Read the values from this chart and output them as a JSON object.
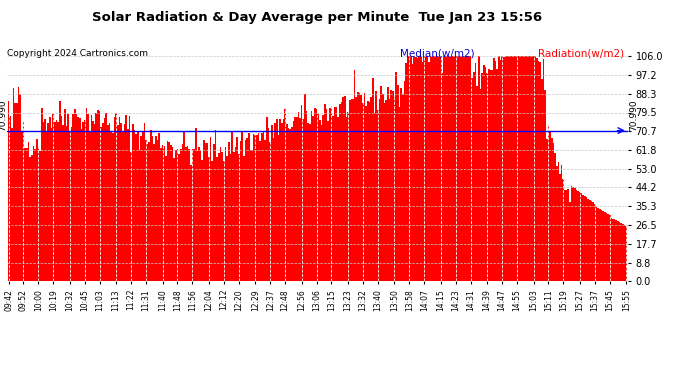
{
  "title": "Solar Radiation & Day Average per Minute  Tue Jan 23 15:56",
  "copyright": "Copyright 2024 Cartronics.com",
  "median_label": "Median(w/m2)",
  "radiation_label": "Radiation(w/m2)",
  "median_value": 70.99,
  "ylim": [
    0.0,
    106.0
  ],
  "yticks": [
    0.0,
    8.8,
    17.7,
    26.5,
    35.3,
    44.2,
    53.0,
    61.8,
    70.7,
    79.5,
    88.3,
    97.2,
    106.0
  ],
  "bar_color": "#FF0000",
  "background_color": "#FFFFFF",
  "plot_bg_color": "#FFFFFF",
  "grid_color": "#C8C8C8",
  "median_line_color": "#0000FF",
  "title_color": "#000000",
  "copyright_color": "#000000",
  "median_text_color": "#0000CD",
  "radiation_text_color": "#FF0000",
  "x_tick_labels": [
    "09:42",
    "09:52",
    "10:00",
    "10:19",
    "10:32",
    "10:45",
    "11:03",
    "11:13",
    "11:22",
    "11:31",
    "11:40",
    "11:48",
    "11:56",
    "12:04",
    "12:12",
    "12:20",
    "12:29",
    "12:37",
    "12:48",
    "12:56",
    "13:06",
    "13:15",
    "13:23",
    "13:32",
    "13:40",
    "13:50",
    "13:58",
    "14:07",
    "14:15",
    "14:23",
    "14:31",
    "14:39",
    "14:47",
    "14:55",
    "15:03",
    "15:11",
    "15:19",
    "15:27",
    "15:37",
    "15:45",
    "15:55"
  ],
  "figsize": [
    6.9,
    3.75
  ],
  "dpi": 100
}
